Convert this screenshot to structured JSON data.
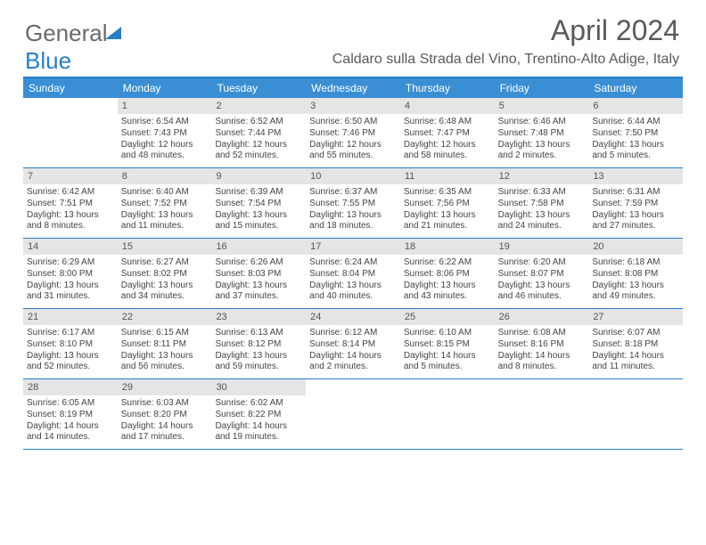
{
  "brand": {
    "part1": "General",
    "part2": "Blue"
  },
  "title": "April 2024",
  "location": "Caldaro sulla Strada del Vino, Trentino-Alto Adige, Italy",
  "colors": {
    "header_bg": "#3a8fd4",
    "border": "#2a7ec4",
    "daynum_bg": "#e5e5e5",
    "text": "#444444",
    "title_text": "#5a5a5a"
  },
  "daynames": [
    "Sunday",
    "Monday",
    "Tuesday",
    "Wednesday",
    "Thursday",
    "Friday",
    "Saturday"
  ],
  "weeks": [
    [
      {
        "blank": true
      },
      {
        "n": "1",
        "sunrise": "6:54 AM",
        "sunset": "7:43 PM",
        "dl1": "Daylight: 12 hours",
        "dl2": "and 48 minutes."
      },
      {
        "n": "2",
        "sunrise": "6:52 AM",
        "sunset": "7:44 PM",
        "dl1": "Daylight: 12 hours",
        "dl2": "and 52 minutes."
      },
      {
        "n": "3",
        "sunrise": "6:50 AM",
        "sunset": "7:46 PM",
        "dl1": "Daylight: 12 hours",
        "dl2": "and 55 minutes."
      },
      {
        "n": "4",
        "sunrise": "6:48 AM",
        "sunset": "7:47 PM",
        "dl1": "Daylight: 12 hours",
        "dl2": "and 58 minutes."
      },
      {
        "n": "5",
        "sunrise": "6:46 AM",
        "sunset": "7:48 PM",
        "dl1": "Daylight: 13 hours",
        "dl2": "and 2 minutes."
      },
      {
        "n": "6",
        "sunrise": "6:44 AM",
        "sunset": "7:50 PM",
        "dl1": "Daylight: 13 hours",
        "dl2": "and 5 minutes."
      }
    ],
    [
      {
        "n": "7",
        "sunrise": "6:42 AM",
        "sunset": "7:51 PM",
        "dl1": "Daylight: 13 hours",
        "dl2": "and 8 minutes."
      },
      {
        "n": "8",
        "sunrise": "6:40 AM",
        "sunset": "7:52 PM",
        "dl1": "Daylight: 13 hours",
        "dl2": "and 11 minutes."
      },
      {
        "n": "9",
        "sunrise": "6:39 AM",
        "sunset": "7:54 PM",
        "dl1": "Daylight: 13 hours",
        "dl2": "and 15 minutes."
      },
      {
        "n": "10",
        "sunrise": "6:37 AM",
        "sunset": "7:55 PM",
        "dl1": "Daylight: 13 hours",
        "dl2": "and 18 minutes."
      },
      {
        "n": "11",
        "sunrise": "6:35 AM",
        "sunset": "7:56 PM",
        "dl1": "Daylight: 13 hours",
        "dl2": "and 21 minutes."
      },
      {
        "n": "12",
        "sunrise": "6:33 AM",
        "sunset": "7:58 PM",
        "dl1": "Daylight: 13 hours",
        "dl2": "and 24 minutes."
      },
      {
        "n": "13",
        "sunrise": "6:31 AM",
        "sunset": "7:59 PM",
        "dl1": "Daylight: 13 hours",
        "dl2": "and 27 minutes."
      }
    ],
    [
      {
        "n": "14",
        "sunrise": "6:29 AM",
        "sunset": "8:00 PM",
        "dl1": "Daylight: 13 hours",
        "dl2": "and 31 minutes."
      },
      {
        "n": "15",
        "sunrise": "6:27 AM",
        "sunset": "8:02 PM",
        "dl1": "Daylight: 13 hours",
        "dl2": "and 34 minutes."
      },
      {
        "n": "16",
        "sunrise": "6:26 AM",
        "sunset": "8:03 PM",
        "dl1": "Daylight: 13 hours",
        "dl2": "and 37 minutes."
      },
      {
        "n": "17",
        "sunrise": "6:24 AM",
        "sunset": "8:04 PM",
        "dl1": "Daylight: 13 hours",
        "dl2": "and 40 minutes."
      },
      {
        "n": "18",
        "sunrise": "6:22 AM",
        "sunset": "8:06 PM",
        "dl1": "Daylight: 13 hours",
        "dl2": "and 43 minutes."
      },
      {
        "n": "19",
        "sunrise": "6:20 AM",
        "sunset": "8:07 PM",
        "dl1": "Daylight: 13 hours",
        "dl2": "and 46 minutes."
      },
      {
        "n": "20",
        "sunrise": "6:18 AM",
        "sunset": "8:08 PM",
        "dl1": "Daylight: 13 hours",
        "dl2": "and 49 minutes."
      }
    ],
    [
      {
        "n": "21",
        "sunrise": "6:17 AM",
        "sunset": "8:10 PM",
        "dl1": "Daylight: 13 hours",
        "dl2": "and 52 minutes."
      },
      {
        "n": "22",
        "sunrise": "6:15 AM",
        "sunset": "8:11 PM",
        "dl1": "Daylight: 13 hours",
        "dl2": "and 56 minutes."
      },
      {
        "n": "23",
        "sunrise": "6:13 AM",
        "sunset": "8:12 PM",
        "dl1": "Daylight: 13 hours",
        "dl2": "and 59 minutes."
      },
      {
        "n": "24",
        "sunrise": "6:12 AM",
        "sunset": "8:14 PM",
        "dl1": "Daylight: 14 hours",
        "dl2": "and 2 minutes."
      },
      {
        "n": "25",
        "sunrise": "6:10 AM",
        "sunset": "8:15 PM",
        "dl1": "Daylight: 14 hours",
        "dl2": "and 5 minutes."
      },
      {
        "n": "26",
        "sunrise": "6:08 AM",
        "sunset": "8:16 PM",
        "dl1": "Daylight: 14 hours",
        "dl2": "and 8 minutes."
      },
      {
        "n": "27",
        "sunrise": "6:07 AM",
        "sunset": "8:18 PM",
        "dl1": "Daylight: 14 hours",
        "dl2": "and 11 minutes."
      }
    ],
    [
      {
        "n": "28",
        "sunrise": "6:05 AM",
        "sunset": "8:19 PM",
        "dl1": "Daylight: 14 hours",
        "dl2": "and 14 minutes."
      },
      {
        "n": "29",
        "sunrise": "6:03 AM",
        "sunset": "8:20 PM",
        "dl1": "Daylight: 14 hours",
        "dl2": "and 17 minutes."
      },
      {
        "n": "30",
        "sunrise": "6:02 AM",
        "sunset": "8:22 PM",
        "dl1": "Daylight: 14 hours",
        "dl2": "and 19 minutes."
      },
      {
        "blank": true
      },
      {
        "blank": true
      },
      {
        "blank": true
      },
      {
        "blank": true
      }
    ]
  ]
}
